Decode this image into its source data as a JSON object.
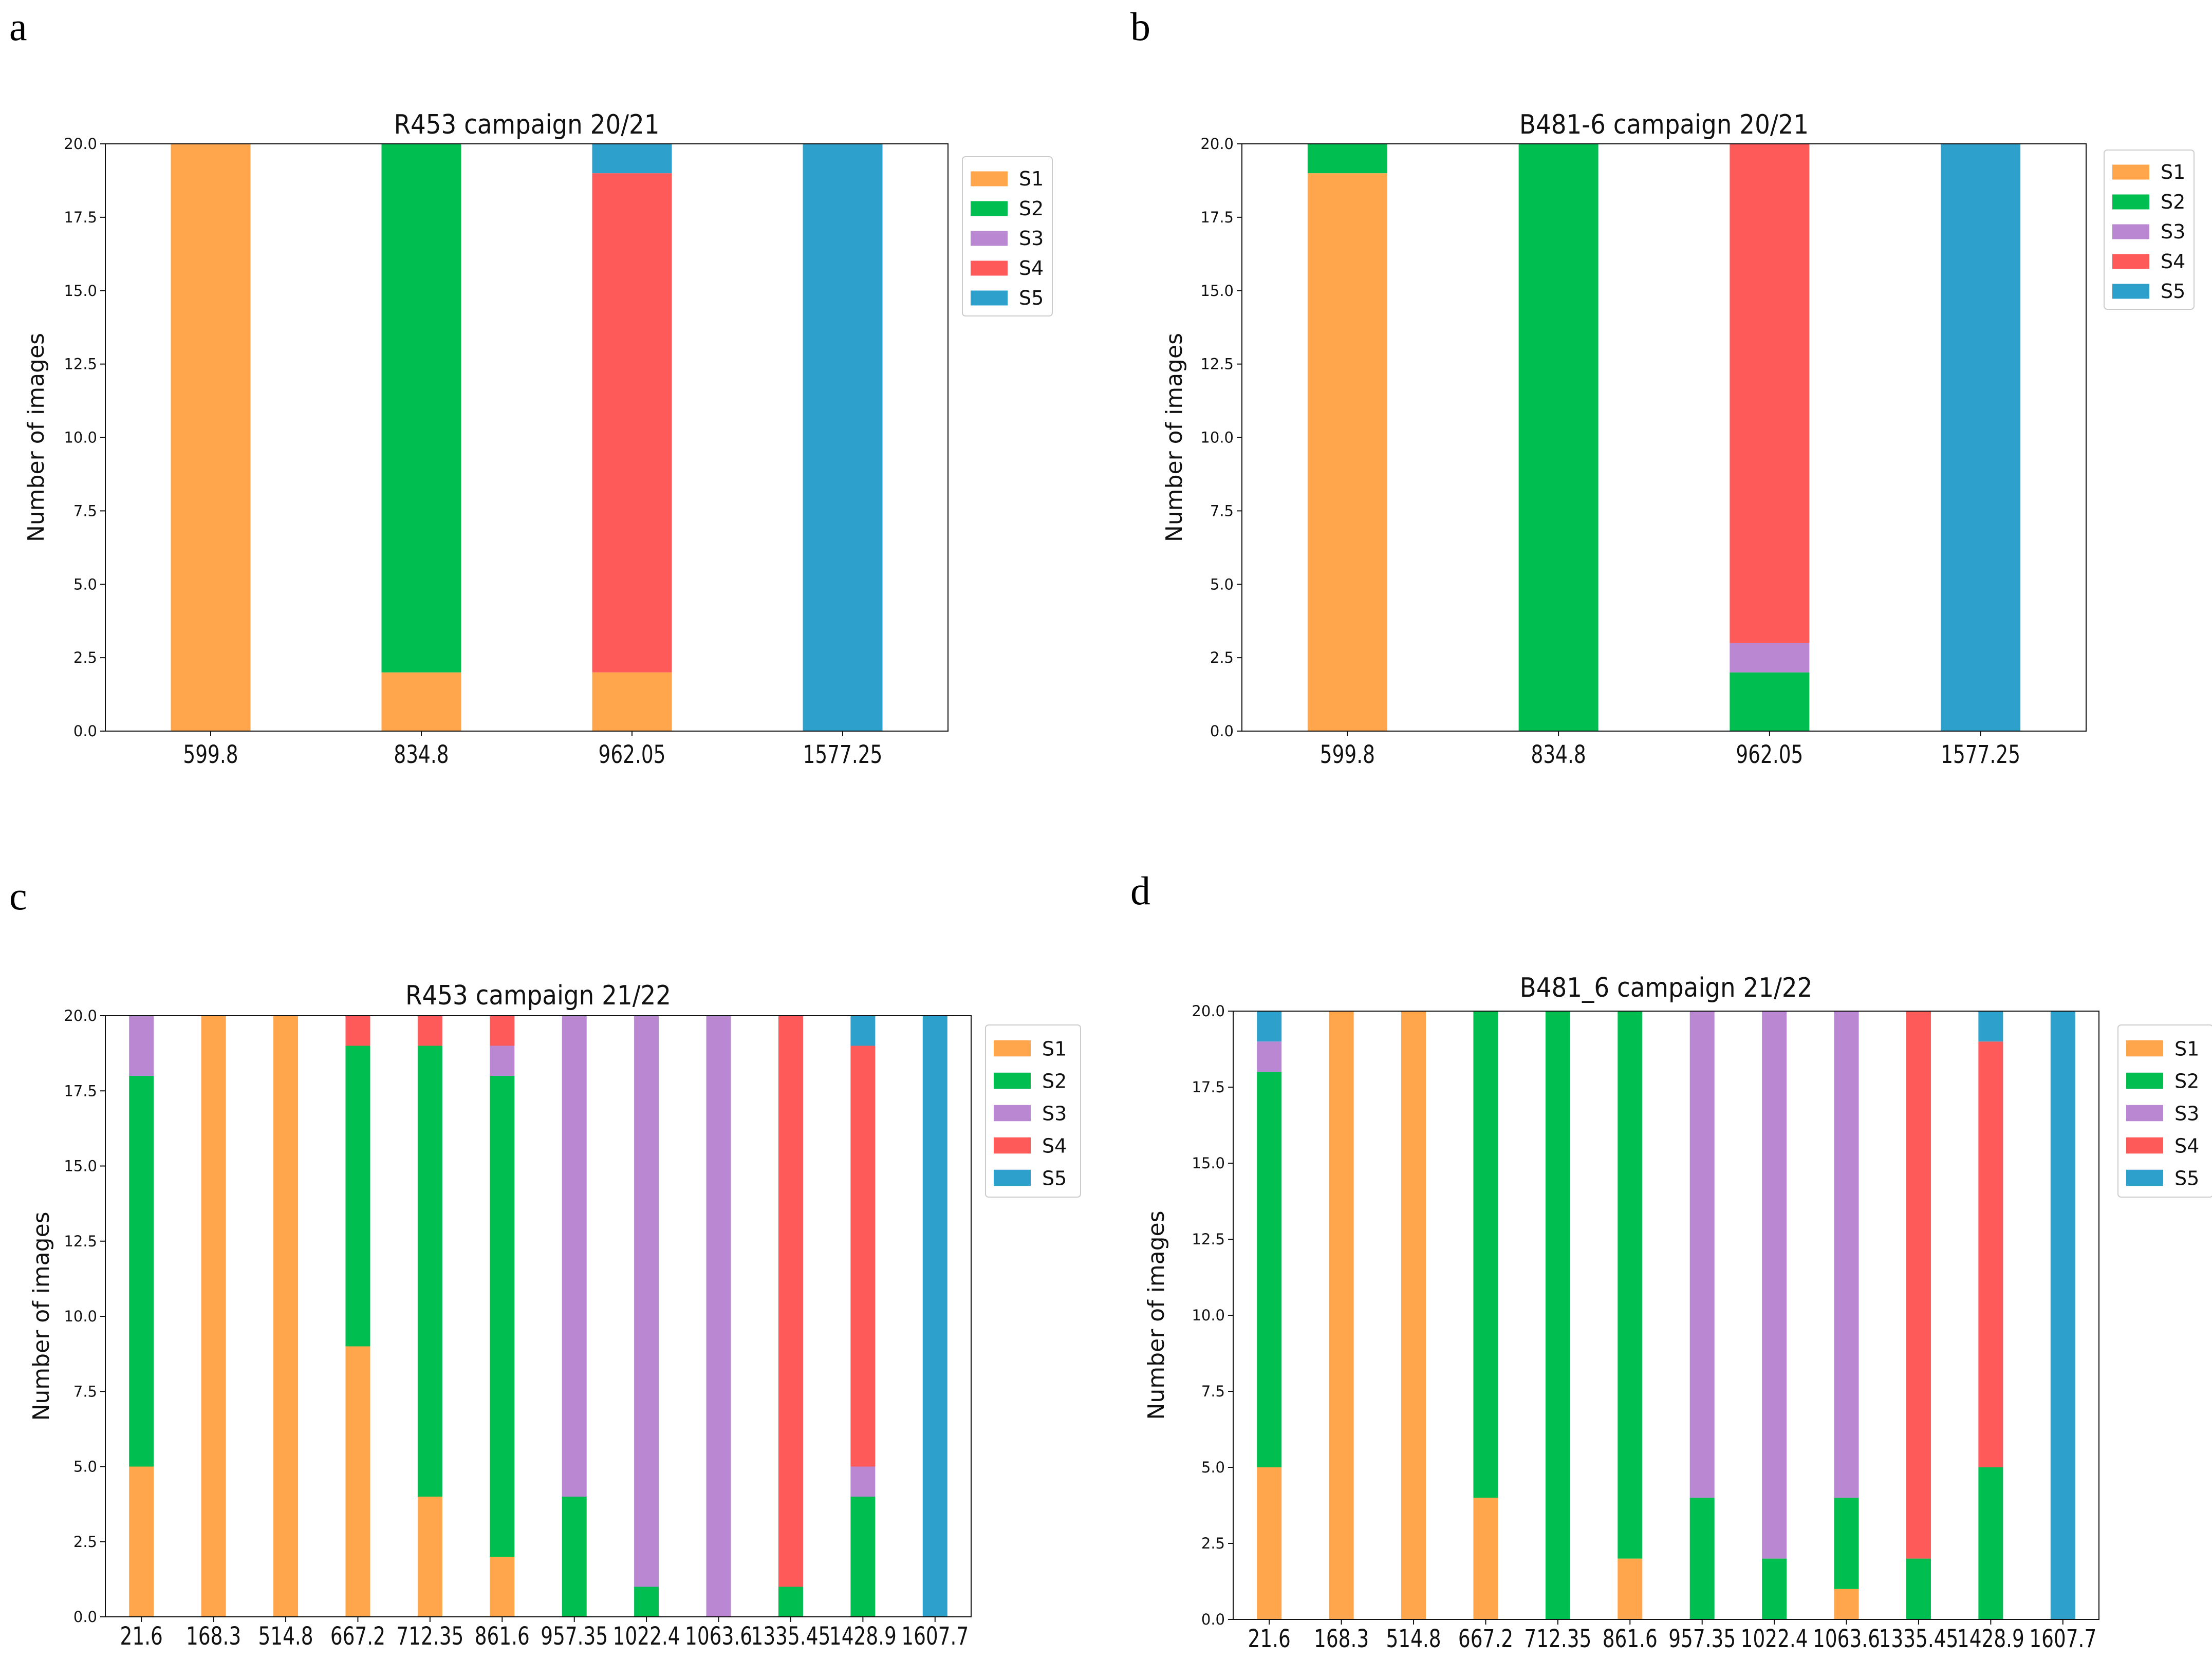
{
  "colors": {
    "S1": "#FFA64D",
    "S2": "#00BF50",
    "S3": "#BA88D3",
    "S4": "#FF5A5A",
    "S5": "#2EA0CC"
  },
  "panel_letters": [
    "a",
    "b",
    "c",
    "d"
  ],
  "chart_data": [
    {
      "type": "bar",
      "stacked": true,
      "panel": "a",
      "title": "R453 campaign 20/21",
      "xlabel": "",
      "ylabel": "Number of images",
      "ylim": [
        0,
        20
      ],
      "yticks": [
        "0.0",
        "2.5",
        "5.0",
        "7.5",
        "10.0",
        "12.5",
        "15.0",
        "17.5",
        "20.0"
      ],
      "legend": [
        "S1",
        "S2",
        "S3",
        "S4",
        "S5"
      ],
      "legend_position": "outside-top-right",
      "categories": [
        "599.8",
        "834.8",
        "962.05",
        "1577.25"
      ],
      "series": [
        {
          "name": "S1",
          "values": [
            20,
            2,
            2,
            0
          ]
        },
        {
          "name": "S2",
          "values": [
            0,
            18,
            0,
            0
          ]
        },
        {
          "name": "S3",
          "values": [
            0,
            0,
            0,
            0
          ]
        },
        {
          "name": "S4",
          "values": [
            0,
            0,
            17,
            0
          ]
        },
        {
          "name": "S5",
          "values": [
            0,
            0,
            1,
            20
          ]
        }
      ]
    },
    {
      "type": "bar",
      "stacked": true,
      "panel": "b",
      "title": "B481-6 campaign 20/21",
      "xlabel": "",
      "ylabel": "Number of images",
      "ylim": [
        0,
        20
      ],
      "yticks": [
        "0.0",
        "2.5",
        "5.0",
        "7.5",
        "10.0",
        "12.5",
        "15.0",
        "17.5",
        "20.0"
      ],
      "legend": [
        "S1",
        "S2",
        "S3",
        "S4",
        "S5"
      ],
      "legend_position": "outside-top-right",
      "categories": [
        "599.8",
        "834.8",
        "962.05",
        "1577.25"
      ],
      "series": [
        {
          "name": "S1",
          "values": [
            19,
            0,
            0,
            0
          ]
        },
        {
          "name": "S2",
          "values": [
            1,
            20,
            2,
            0
          ]
        },
        {
          "name": "S3",
          "values": [
            0,
            0,
            1,
            0
          ]
        },
        {
          "name": "S4",
          "values": [
            0,
            0,
            17,
            0
          ]
        },
        {
          "name": "S5",
          "values": [
            0,
            0,
            0,
            20
          ]
        }
      ]
    },
    {
      "type": "bar",
      "stacked": true,
      "panel": "c",
      "title": "R453 campaign 21/22",
      "xlabel": "",
      "ylabel": "Number of images",
      "ylim": [
        0,
        20
      ],
      "yticks": [
        "0.0",
        "2.5",
        "5.0",
        "7.5",
        "10.0",
        "12.5",
        "15.0",
        "17.5",
        "20.0"
      ],
      "legend": [
        "S1",
        "S2",
        "S3",
        "S4",
        "S5"
      ],
      "legend_position": "outside-top-right",
      "categories": [
        "21.6",
        "168.3",
        "514.8",
        "667.2",
        "712.35",
        "861.6",
        "957.35",
        "1022.4",
        "1063.6",
        "1335.45",
        "1428.9",
        "1607.7"
      ],
      "series": [
        {
          "name": "S1",
          "values": [
            5,
            20,
            20,
            9,
            4,
            2,
            0,
            0,
            0,
            0,
            0,
            0
          ]
        },
        {
          "name": "S2",
          "values": [
            13,
            0,
            0,
            10,
            15,
            16,
            4,
            1,
            0,
            1,
            4,
            0
          ]
        },
        {
          "name": "S3",
          "values": [
            2,
            0,
            0,
            0,
            0,
            1,
            16,
            19,
            20,
            0,
            1,
            0
          ]
        },
        {
          "name": "S4",
          "values": [
            0,
            0,
            0,
            1,
            1,
            1,
            0,
            0,
            0,
            19,
            14,
            0
          ]
        },
        {
          "name": "S5",
          "values": [
            0,
            0,
            0,
            0,
            0,
            0,
            0,
            0,
            0,
            0,
            1,
            20
          ]
        }
      ]
    },
    {
      "type": "bar",
      "stacked": true,
      "panel": "d",
      "title": "B481_6 campaign 21/22",
      "xlabel": "",
      "ylabel": "Number of images",
      "ylim": [
        0,
        20
      ],
      "yticks": [
        "0.0",
        "2.5",
        "5.0",
        "7.5",
        "10.0",
        "12.5",
        "15.0",
        "17.5",
        "20.0"
      ],
      "legend": [
        "S1",
        "S2",
        "S3",
        "S4",
        "S5"
      ],
      "legend_position": "outside-top-right",
      "categories": [
        "21.6",
        "168.3",
        "514.8",
        "667.2",
        "712.35",
        "861.6",
        "957.35",
        "1022.4",
        "1063.6",
        "1335.45",
        "1428.9",
        "1607.7"
      ],
      "series": [
        {
          "name": "S1",
          "values": [
            5,
            20,
            20,
            4,
            0,
            2,
            0,
            0,
            1,
            0,
            0,
            0
          ]
        },
        {
          "name": "S2",
          "values": [
            13,
            0,
            0,
            16,
            20,
            18,
            4,
            2,
            3,
            2,
            5,
            0
          ]
        },
        {
          "name": "S3",
          "values": [
            1,
            0,
            0,
            0,
            0,
            0,
            16,
            18,
            16,
            0,
            0,
            0
          ]
        },
        {
          "name": "S4",
          "values": [
            0,
            0,
            0,
            0,
            0,
            0,
            0,
            0,
            0,
            18,
            14,
            0
          ]
        },
        {
          "name": "S5",
          "values": [
            1,
            0,
            0,
            0,
            0,
            0,
            0,
            0,
            0,
            0,
            1,
            20
          ]
        }
      ]
    }
  ]
}
